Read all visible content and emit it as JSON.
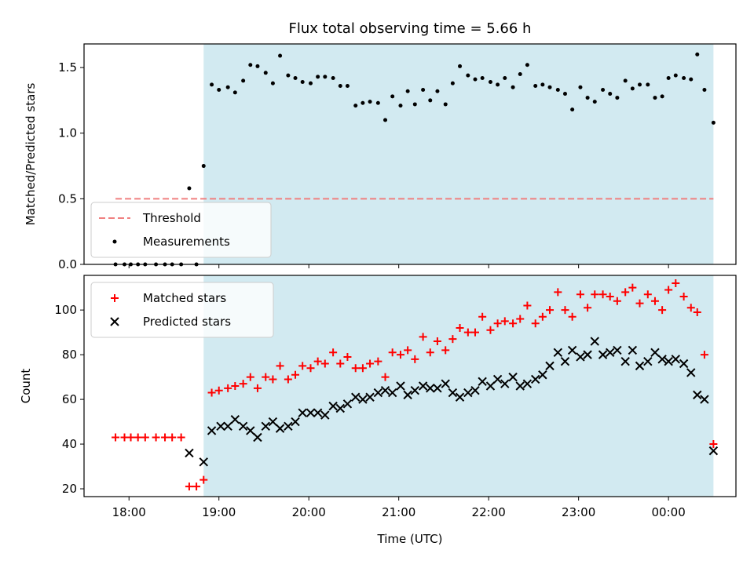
{
  "chart_data": {
    "title": "Flux total observing time = 5.66 h",
    "xlabel": "Time (UTC)",
    "x_unit": "hours (UTC, continuing past midnight)",
    "xlim": [
      17.5,
      24.75
    ],
    "x_ticks": [
      {
        "value": 18,
        "label": "18:00"
      },
      {
        "value": 19,
        "label": "19:00"
      },
      {
        "value": 20,
        "label": "20:00"
      },
      {
        "value": 21,
        "label": "21:00"
      },
      {
        "value": 22,
        "label": "22:00"
      },
      {
        "value": 23,
        "label": "23:00"
      },
      {
        "value": 24,
        "label": "00:00"
      }
    ],
    "shaded_span": [
      18.83,
      24.5
    ],
    "shade_color": "#add8e6",
    "panels": [
      {
        "name": "ratio",
        "type": "scatter",
        "ylabel": "Matched/Predicted stars",
        "ylim": [
          0,
          1.68
        ],
        "y_ticks": [
          0.0,
          0.5,
          1.0,
          1.5
        ],
        "y_tick_labels": [
          "0.0",
          "0.5",
          "1.0",
          "1.5"
        ],
        "legend_position": "lower-left",
        "threshold": {
          "label": "Threshold",
          "y": 0.5,
          "x_range": [
            17.85,
            24.5
          ],
          "color": "#f08080",
          "style": "dashed"
        },
        "series": [
          {
            "name": "Measurements",
            "color": "#000000",
            "marker": "dot",
            "points": [
              [
                17.85,
                0
              ],
              [
                17.95,
                0
              ],
              [
                18.02,
                0
              ],
              [
                18.1,
                0
              ],
              [
                18.18,
                0
              ],
              [
                18.3,
                0
              ],
              [
                18.4,
                0
              ],
              [
                18.48,
                0
              ],
              [
                18.58,
                0
              ],
              [
                18.67,
                0.58
              ],
              [
                18.75,
                0
              ],
              [
                18.83,
                0.75
              ],
              [
                18.92,
                1.37
              ],
              [
                19.0,
                1.33
              ],
              [
                19.1,
                1.35
              ],
              [
                19.18,
                1.31
              ],
              [
                19.27,
                1.4
              ],
              [
                19.35,
                1.52
              ],
              [
                19.43,
                1.51
              ],
              [
                19.52,
                1.46
              ],
              [
                19.6,
                1.38
              ],
              [
                19.68,
                1.59
              ],
              [
                19.77,
                1.44
              ],
              [
                19.85,
                1.42
              ],
              [
                19.93,
                1.39
              ],
              [
                20.02,
                1.38
              ],
              [
                20.1,
                1.43
              ],
              [
                20.18,
                1.43
              ],
              [
                20.27,
                1.42
              ],
              [
                20.35,
                1.36
              ],
              [
                20.43,
                1.36
              ],
              [
                20.52,
                1.21
              ],
              [
                20.6,
                1.23
              ],
              [
                20.68,
                1.24
              ],
              [
                20.77,
                1.23
              ],
              [
                20.85,
                1.1
              ],
              [
                20.93,
                1.28
              ],
              [
                21.02,
                1.21
              ],
              [
                21.1,
                1.32
              ],
              [
                21.18,
                1.22
              ],
              [
                21.27,
                1.33
              ],
              [
                21.35,
                1.25
              ],
              [
                21.43,
                1.32
              ],
              [
                21.52,
                1.22
              ],
              [
                21.6,
                1.38
              ],
              [
                21.68,
                1.51
              ],
              [
                21.77,
                1.44
              ],
              [
                21.85,
                1.41
              ],
              [
                21.93,
                1.42
              ],
              [
                22.02,
                1.39
              ],
              [
                22.1,
                1.37
              ],
              [
                22.18,
                1.42
              ],
              [
                22.27,
                1.35
              ],
              [
                22.35,
                1.45
              ],
              [
                22.43,
                1.52
              ],
              [
                22.52,
                1.36
              ],
              [
                22.6,
                1.37
              ],
              [
                22.68,
                1.35
              ],
              [
                22.77,
                1.33
              ],
              [
                22.85,
                1.3
              ],
              [
                22.93,
                1.18
              ],
              [
                23.02,
                1.35
              ],
              [
                23.1,
                1.27
              ],
              [
                23.18,
                1.24
              ],
              [
                23.27,
                1.33
              ],
              [
                23.35,
                1.3
              ],
              [
                23.43,
                1.27
              ],
              [
                23.52,
                1.4
              ],
              [
                23.6,
                1.34
              ],
              [
                23.68,
                1.37
              ],
              [
                23.77,
                1.37
              ],
              [
                23.85,
                1.27
              ],
              [
                23.93,
                1.28
              ],
              [
                24.0,
                1.42
              ],
              [
                24.08,
                1.44
              ],
              [
                24.17,
                1.42
              ],
              [
                24.25,
                1.41
              ],
              [
                24.32,
                1.6
              ],
              [
                24.4,
                1.33
              ],
              [
                24.5,
                1.08
              ]
            ]
          }
        ]
      },
      {
        "name": "counts",
        "type": "scatter",
        "ylabel": "Count",
        "ylim": [
          16.5,
          115.5
        ],
        "y_ticks": [
          20,
          40,
          60,
          80,
          100
        ],
        "y_tick_labels": [
          "20",
          "40",
          "60",
          "80",
          "100"
        ],
        "legend_position": "upper-left",
        "series": [
          {
            "name": "Matched stars",
            "color": "#ff0000",
            "marker": "plus",
            "points": [
              [
                17.85,
                43
              ],
              [
                17.95,
                43
              ],
              [
                18.02,
                43
              ],
              [
                18.1,
                43
              ],
              [
                18.18,
                43
              ],
              [
                18.3,
                43
              ],
              [
                18.4,
                43
              ],
              [
                18.48,
                43
              ],
              [
                18.58,
                43
              ],
              [
                18.67,
                21
              ],
              [
                18.75,
                21
              ],
              [
                18.83,
                24
              ],
              [
                18.92,
                63
              ],
              [
                19.0,
                64
              ],
              [
                19.1,
                65
              ],
              [
                19.18,
                66
              ],
              [
                19.27,
                67
              ],
              [
                19.35,
                70
              ],
              [
                19.43,
                65
              ],
              [
                19.52,
                70
              ],
              [
                19.6,
                69
              ],
              [
                19.68,
                75
              ],
              [
                19.77,
                69
              ],
              [
                19.85,
                71
              ],
              [
                19.93,
                75
              ],
              [
                20.02,
                74
              ],
              [
                20.1,
                77
              ],
              [
                20.18,
                76
              ],
              [
                20.27,
                81
              ],
              [
                20.35,
                76
              ],
              [
                20.43,
                79
              ],
              [
                20.52,
                74
              ],
              [
                20.6,
                74
              ],
              [
                20.68,
                76
              ],
              [
                20.77,
                77
              ],
              [
                20.85,
                70
              ],
              [
                20.93,
                81
              ],
              [
                21.02,
                80
              ],
              [
                21.1,
                82
              ],
              [
                21.18,
                78
              ],
              [
                21.27,
                88
              ],
              [
                21.35,
                81
              ],
              [
                21.43,
                86
              ],
              [
                21.52,
                82
              ],
              [
                21.6,
                87
              ],
              [
                21.68,
                92
              ],
              [
                21.77,
                90
              ],
              [
                21.85,
                90
              ],
              [
                21.93,
                97
              ],
              [
                22.02,
                91
              ],
              [
                22.1,
                94
              ],
              [
                22.18,
                95
              ],
              [
                22.27,
                94
              ],
              [
                22.35,
                96
              ],
              [
                22.43,
                102
              ],
              [
                22.52,
                94
              ],
              [
                22.6,
                97
              ],
              [
                22.68,
                100
              ],
              [
                22.77,
                108
              ],
              [
                22.85,
                100
              ],
              [
                22.93,
                97
              ],
              [
                23.02,
                107
              ],
              [
                23.1,
                101
              ],
              [
                23.18,
                107
              ],
              [
                23.27,
                107
              ],
              [
                23.35,
                106
              ],
              [
                23.43,
                104
              ],
              [
                23.52,
                108
              ],
              [
                23.6,
                110
              ],
              [
                23.68,
                103
              ],
              [
                23.77,
                107
              ],
              [
                23.85,
                104
              ],
              [
                23.93,
                100
              ],
              [
                24.0,
                109
              ],
              [
                24.08,
                112
              ],
              [
                24.17,
                106
              ],
              [
                24.25,
                101
              ],
              [
                24.32,
                99
              ],
              [
                24.4,
                80
              ],
              [
                24.5,
                40
              ]
            ]
          },
          {
            "name": "Predicted stars",
            "color": "#000000",
            "marker": "x",
            "points": [
              [
                18.67,
                36
              ],
              [
                18.83,
                32
              ],
              [
                18.92,
                46
              ],
              [
                19.02,
                48
              ],
              [
                19.1,
                48
              ],
              [
                19.18,
                51
              ],
              [
                19.27,
                48
              ],
              [
                19.35,
                46
              ],
              [
                19.43,
                43
              ],
              [
                19.52,
                48
              ],
              [
                19.6,
                50
              ],
              [
                19.68,
                47
              ],
              [
                19.77,
                48
              ],
              [
                19.85,
                50
              ],
              [
                19.93,
                54
              ],
              [
                20.02,
                54
              ],
              [
                20.1,
                54
              ],
              [
                20.18,
                53
              ],
              [
                20.27,
                57
              ],
              [
                20.35,
                56
              ],
              [
                20.43,
                58
              ],
              [
                20.52,
                61
              ],
              [
                20.6,
                60
              ],
              [
                20.68,
                61
              ],
              [
                20.77,
                63
              ],
              [
                20.85,
                64
              ],
              [
                20.93,
                63
              ],
              [
                21.02,
                66
              ],
              [
                21.1,
                62
              ],
              [
                21.18,
                64
              ],
              [
                21.27,
                66
              ],
              [
                21.35,
                65
              ],
              [
                21.43,
                65
              ],
              [
                21.52,
                67
              ],
              [
                21.6,
                63
              ],
              [
                21.68,
                61
              ],
              [
                21.77,
                63
              ],
              [
                21.85,
                64
              ],
              [
                21.93,
                68
              ],
              [
                22.02,
                66
              ],
              [
                22.1,
                69
              ],
              [
                22.18,
                67
              ],
              [
                22.27,
                70
              ],
              [
                22.35,
                66
              ],
              [
                22.43,
                67
              ],
              [
                22.52,
                69
              ],
              [
                22.6,
                71
              ],
              [
                22.68,
                75
              ],
              [
                22.77,
                81
              ],
              [
                22.85,
                77
              ],
              [
                22.93,
                82
              ],
              [
                23.02,
                79
              ],
              [
                23.1,
                80
              ],
              [
                23.18,
                86
              ],
              [
                23.27,
                80
              ],
              [
                23.35,
                81
              ],
              [
                23.43,
                82
              ],
              [
                23.52,
                77
              ],
              [
                23.6,
                82
              ],
              [
                23.68,
                75
              ],
              [
                23.77,
                77
              ],
              [
                23.85,
                81
              ],
              [
                23.93,
                78
              ],
              [
                24.0,
                77
              ],
              [
                24.08,
                78
              ],
              [
                24.17,
                76
              ],
              [
                24.25,
                72
              ],
              [
                24.32,
                62
              ],
              [
                24.4,
                60
              ],
              [
                24.5,
                37
              ]
            ]
          }
        ]
      }
    ]
  }
}
